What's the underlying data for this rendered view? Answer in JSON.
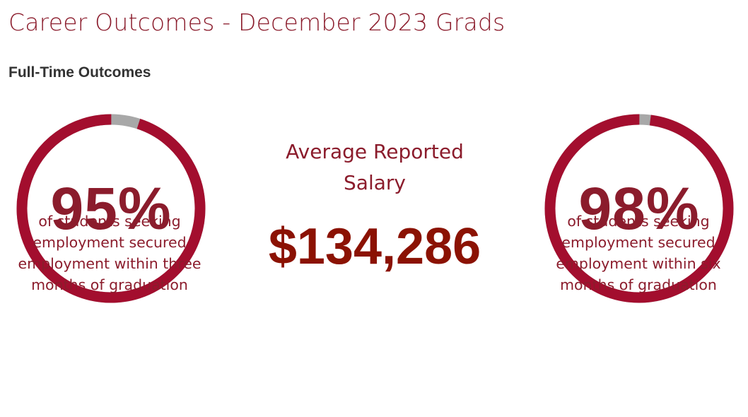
{
  "header": {
    "title": "Career Outcomes - December 2023 Grads",
    "section_heading": "Full-Time Outcomes"
  },
  "outcomes": [
    {
      "percent_label": "95%",
      "percent_value": 95,
      "caption_lines": [
        "of students seeking",
        "employment secured",
        "employment within three",
        "months of graduation"
      ]
    },
    {
      "percent_label": "98%",
      "percent_value": 98,
      "caption_lines": [
        "of students seeking",
        "employment secured",
        "employment within six",
        "months of graduation"
      ]
    }
  ],
  "salary": {
    "label_line1": "Average Reported",
    "label_line2": "Salary",
    "value": "$134,286"
  },
  "colors": {
    "brand": "#8b1c2c",
    "ring_fill": "#a30e2e",
    "ring_remainder": "#a8a8a8",
    "salary_value": "#8b1203",
    "section_heading": "#333333"
  }
}
